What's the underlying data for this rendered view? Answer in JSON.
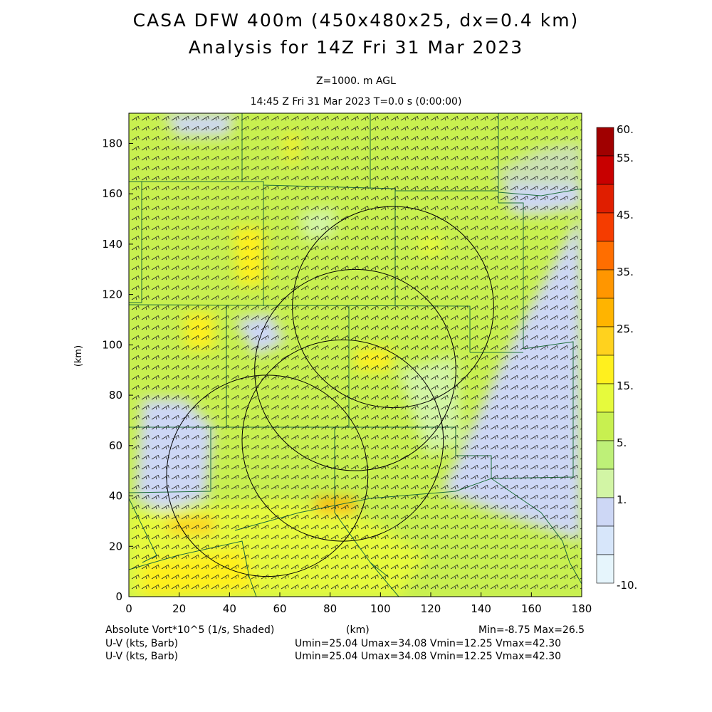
{
  "header": {
    "title_line1": "CASA DFW 400m (450x480x25, dx=0.4 km)",
    "title_line2": "Analysis for 14Z Fri 31 Mar 2023",
    "level": "Z=1000. m AGL",
    "time": "14:45 Z Fri 31 Mar 2023    T=0.0 s (0:00:00)"
  },
  "axes": {
    "xlabel": "(km)",
    "ylabel": "(km)",
    "x_ticks": [
      "0",
      "20",
      "40",
      "60",
      "80",
      "100",
      "120",
      "140",
      "160",
      "180"
    ],
    "y_ticks": [
      "0",
      "20",
      "40",
      "60",
      "80",
      "100",
      "120",
      "140",
      "160",
      "180"
    ],
    "xlim": [
      0,
      180
    ],
    "ylim": [
      0,
      192
    ]
  },
  "colorbar": {
    "labels": [
      "60.",
      "55.",
      "45.",
      "35.",
      "25.",
      "15.",
      "5.",
      "1.",
      "-10."
    ],
    "colors": [
      "#a00000",
      "#c80000",
      "#e01e00",
      "#f53c00",
      "#ff6e00",
      "#ff9600",
      "#ffb400",
      "#ffd21e",
      "#fff01e",
      "#e6fa3c",
      "#c8f050",
      "#bef078",
      "#d2f5a5",
      "#cdd7f5",
      "#d7e6fa",
      "#e6f5fc"
    ]
  },
  "footer": {
    "field_label": "Absolute Vort*10^5 (1/s, Shaded)",
    "field_unit": "(km)",
    "field_range": "Min=-8.75 Max=26.5",
    "vector1_label": "U-V (kts, Barb)",
    "vector1_range": "Umin=25.04 Umax=34.08 Vmin=12.25 Vmax=42.30",
    "vector2_label": "U-V (kts, Barb)",
    "vector2_range": "Umin=25.04 Umax=34.08 Vmin=12.25 Vmax=42.30"
  },
  "map": {
    "background_color": "#c8f050",
    "radar_range_rings_km": [
      {
        "cx": 105,
        "cy": 115,
        "r": 40
      },
      {
        "cx": 90,
        "cy": 90,
        "r": 40
      },
      {
        "cx": 85,
        "cy": 62,
        "r": 40
      },
      {
        "cx": 55,
        "cy": 48,
        "r": 40
      }
    ]
  }
}
